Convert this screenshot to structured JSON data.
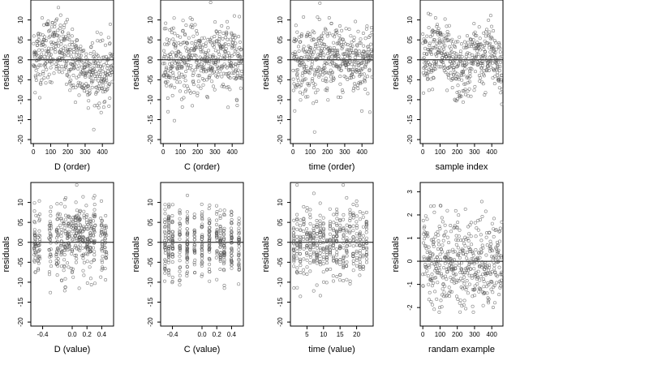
{
  "chart_data": [
    {
      "type": "scatter",
      "ylabel": "residuals",
      "xlabel": "D (order)",
      "xlim": [
        -15,
        465
      ],
      "ylim": [
        -21,
        15
      ],
      "xticks": [
        0,
        100,
        200,
        300,
        400
      ],
      "xtick_labels": [
        "0",
        "100",
        "200",
        "300",
        "400"
      ],
      "yticks": [
        -20,
        -15,
        -10,
        -5,
        0,
        5,
        10
      ],
      "ytick_labels": [
        "-20",
        "-15",
        "-10",
        "-05",
        "00",
        "05",
        "10"
      ],
      "zero_line": 0,
      "pattern": "order_D",
      "n": 460
    },
    {
      "type": "scatter",
      "ylabel": "residuals",
      "xlabel": "C (order)",
      "xlim": [
        -15,
        465
      ],
      "ylim": [
        -21,
        15
      ],
      "xticks": [
        0,
        100,
        200,
        300,
        400
      ],
      "xtick_labels": [
        "0",
        "100",
        "200",
        "300",
        "400"
      ],
      "yticks": [
        -20,
        -15,
        -10,
        -5,
        0,
        5,
        10
      ],
      "ytick_labels": [
        "-20",
        "-15",
        "-10",
        "-05",
        "00",
        "05",
        "10"
      ],
      "zero_line": 0,
      "pattern": "uniform",
      "n": 460
    },
    {
      "type": "scatter",
      "ylabel": "residuals",
      "xlabel": "time (order)",
      "xlim": [
        -15,
        465
      ],
      "ylim": [
        -21,
        15
      ],
      "xticks": [
        0,
        100,
        200,
        300,
        400
      ],
      "xtick_labels": [
        "0",
        "100",
        "200",
        "300",
        "400"
      ],
      "yticks": [
        -20,
        -15,
        -10,
        -5,
        0,
        5,
        10
      ],
      "ytick_labels": [
        "-20",
        "-15",
        "-10",
        "-05",
        "00",
        "05",
        "10"
      ],
      "zero_line": 0,
      "pattern": "uniform",
      "n": 460
    },
    {
      "type": "scatter",
      "ylabel": "residuals",
      "xlabel": "sample index",
      "xlim": [
        -15,
        465
      ],
      "ylim": [
        -21,
        15
      ],
      "xticks": [
        0,
        100,
        200,
        300,
        400
      ],
      "xtick_labels": [
        "0",
        "100",
        "200",
        "300",
        "400"
      ],
      "yticks": [
        -20,
        -15,
        -10,
        -5,
        0,
        5,
        10
      ],
      "ytick_labels": [
        "-20",
        "-15",
        "-10",
        "-05",
        "00",
        "05",
        "10"
      ],
      "zero_line": 0,
      "pattern": "order_S",
      "n": 460
    },
    {
      "type": "scatter",
      "ylabel": "residuals",
      "xlabel": "D (value)",
      "xlim": [
        -0.56,
        0.56
      ],
      "ylim": [
        -21,
        15
      ],
      "xticks": [
        -0.4,
        0.0,
        0.2,
        0.4
      ],
      "xtick_labels": [
        "-0.4",
        "0.0",
        "0.2",
        "0.4"
      ],
      "yticks": [
        -20,
        -15,
        -10,
        -5,
        0,
        5,
        10
      ],
      "ytick_labels": [
        "-20",
        "-15",
        "-10",
        "-05",
        "00",
        "05",
        "10"
      ],
      "zero_line": 0,
      "pattern": "value_D",
      "n": 460
    },
    {
      "type": "scatter",
      "ylabel": "residuals",
      "xlabel": "C (value)",
      "xlim": [
        -0.56,
        0.56
      ],
      "ylim": [
        -21,
        15
      ],
      "xticks": [
        -0.4,
        0.0,
        0.2,
        0.4
      ],
      "xtick_labels": [
        "-0.4",
        "0.0",
        "0.2",
        "0.4"
      ],
      "yticks": [
        -20,
        -15,
        -10,
        -5,
        0,
        5,
        10
      ],
      "ytick_labels": [
        "-20",
        "-15",
        "-10",
        "-05",
        "00",
        "05",
        "10"
      ],
      "zero_line": 0,
      "pattern": "value_C",
      "n": 460
    },
    {
      "type": "scatter",
      "ylabel": "residuals",
      "xlabel": "time (value)",
      "xlim": [
        0,
        25
      ],
      "ylim": [
        -21,
        15
      ],
      "xticks": [
        5,
        10,
        15,
        20
      ],
      "xtick_labels": [
        "5",
        "10",
        "15",
        "20"
      ],
      "yticks": [
        -20,
        -15,
        -10,
        -5,
        0,
        5,
        10
      ],
      "ytick_labels": [
        "-20",
        "-15",
        "-10",
        "-05",
        "00",
        "05",
        "10"
      ],
      "zero_line": 0,
      "pattern": "value_T",
      "n": 460
    },
    {
      "type": "scatter",
      "ylabel": "residuals",
      "xlabel": "randam example",
      "xlim": [
        -15,
        465
      ],
      "ylim": [
        -2.8,
        3.4
      ],
      "xticks": [
        0,
        100,
        200,
        300,
        400
      ],
      "xtick_labels": [
        "0",
        "100",
        "200",
        "300",
        "400"
      ],
      "yticks": [
        -2,
        -1,
        0,
        1,
        2,
        3
      ],
      "ytick_labels": [
        "-2",
        "-1",
        "0",
        "1",
        "2",
        "3"
      ],
      "zero_line": 0,
      "pattern": "normal",
      "n": 460
    }
  ]
}
